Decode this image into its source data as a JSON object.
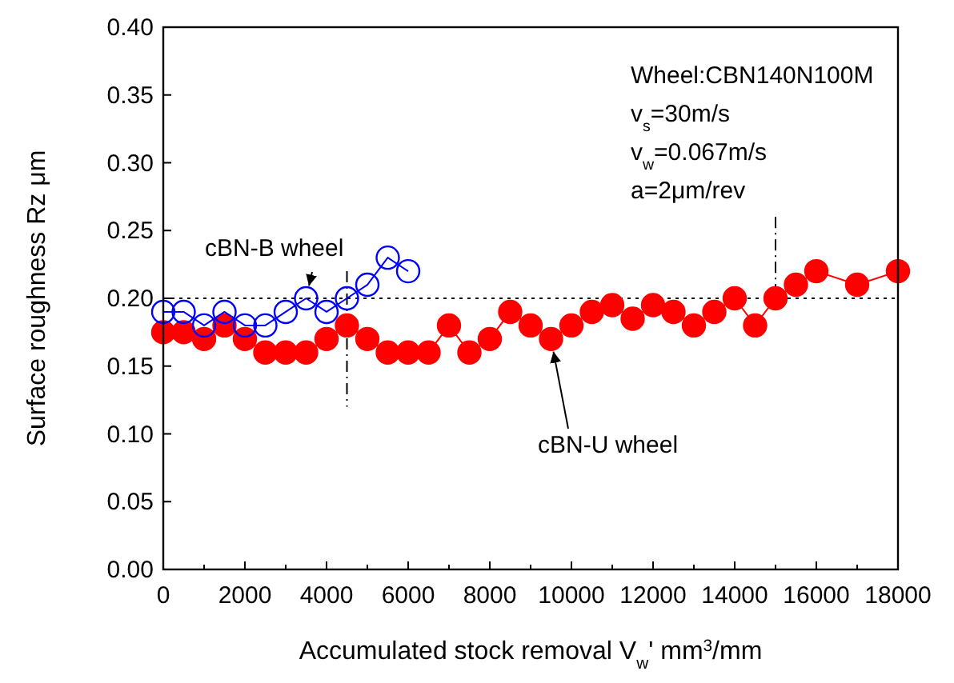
{
  "chart_data": {
    "type": "line",
    "xlabel": "Accumulated stock removal  V$_{w}$'  mm$^{3}$/mm",
    "ylabel": "Surface roughness  Rz  μm",
    "xlim": [
      0,
      18000
    ],
    "ylim": [
      0,
      0.4
    ],
    "xticks": [
      0,
      {
        "value": 1000,
        "label": null
      },
      2000,
      {
        "value": 3000,
        "label": null
      },
      4000,
      {
        "value": 5000,
        "label": null
      },
      6000,
      {
        "value": 7000,
        "label": null
      },
      8000,
      {
        "value": 9000,
        "label": null
      },
      10000,
      {
        "value": 11000,
        "label": null
      },
      12000,
      {
        "value": 13000,
        "label": null
      },
      14000,
      {
        "value": 15000,
        "label": null
      },
      16000,
      {
        "value": 17000,
        "label": null
      },
      18000
    ],
    "yticks": [
      {
        "value": 0,
        "label": "0.00"
      },
      {
        "value": 0.05,
        "label": "0.05"
      },
      {
        "value": 0.1,
        "label": "0.10"
      },
      {
        "value": 0.15,
        "label": "0.15"
      },
      {
        "value": 0.2,
        "label": "0.20"
      },
      {
        "value": 0.25,
        "label": "0.25"
      },
      {
        "value": 0.3,
        "label": "0.30"
      },
      {
        "value": 0.35,
        "label": "0.35"
      },
      {
        "value": 0.4,
        "label": "0.40"
      }
    ],
    "marker": "circle",
    "line_style": "solid",
    "grid": false,
    "series": [
      {
        "color": "#ff0000",
        "x": [
          0,
          500,
          1000,
          1500,
          2000,
          2500,
          3000,
          3500,
          4000,
          4500,
          5000,
          5500,
          6000,
          6500,
          7000,
          7500,
          8000,
          8500,
          9000,
          9500,
          10000,
          10500,
          11000,
          11500,
          12000,
          12500,
          13000,
          13500,
          14000,
          14500,
          15000,
          15500,
          16000,
          17000,
          18000
        ],
        "values": [
          0.175,
          0.175,
          0.17,
          0.18,
          0.17,
          0.16,
          0.16,
          0.16,
          0.17,
          0.18,
          0.17,
          0.16,
          0.16,
          0.16,
          0.18,
          0.16,
          0.17,
          0.19,
          0.18,
          0.17,
          0.18,
          0.19,
          0.195,
          0.185,
          0.195,
          0.19,
          0.18,
          0.19,
          0.2,
          0.18,
          0.2,
          0.21,
          0.22,
          0.21,
          0.22
        ]
      },
      {
        "color": "#0000ff",
        "x": [
          0,
          500,
          1000,
          1500,
          2000,
          2500,
          3000,
          3500,
          4000,
          4500,
          5000,
          5500,
          6000
        ],
        "values": [
          0.19,
          0.19,
          0.18,
          0.19,
          0.18,
          0.18,
          0.19,
          0.2,
          0.19,
          0.2,
          0.21,
          0.23,
          0.22
        ]
      }
    ],
    "ref_lines": [
      {
        "axis": "y",
        "value": 0.2,
        "line_style": "dotted",
        "color": "#000000"
      },
      {
        "axis": "x",
        "value": 4500,
        "line_style": "dashed",
        "color": "#000000"
      },
      {
        "axis": "x",
        "value": 15000,
        "line_style": "dashed",
        "color": "#000000"
      }
    ],
    "annotations": [
      "Wheel:CBN140N100M",
      "v$_{s}$=30m/s",
      "v$_{w}$=0.067m/s",
      "a=2μm/rev",
      {
        "text": "cBN-B wheel",
        "x": 3500,
        "y": 0.2
      },
      {
        "text": "cBN-U wheel",
        "x": 9500,
        "y": 0.17
      }
    ]
  }
}
